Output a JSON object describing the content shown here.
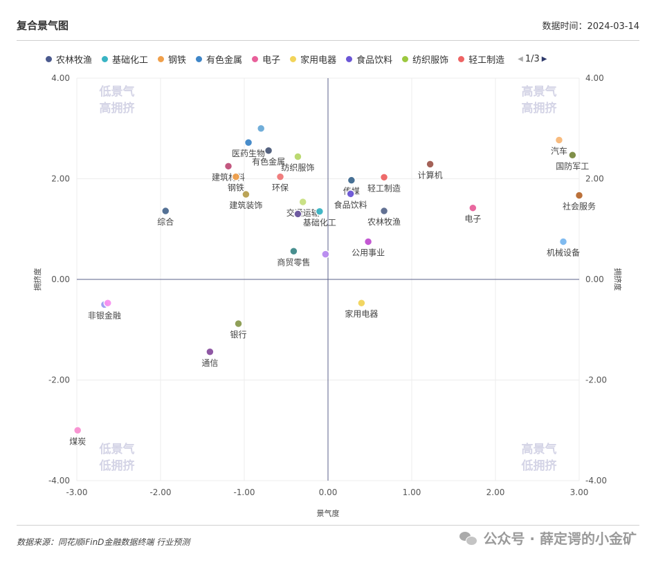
{
  "header": {
    "title": "复合景气图",
    "data_time": "数据时间：2024-03-14"
  },
  "legend": {
    "items": [
      {
        "label": "农林牧渔",
        "color": "#4b5a8e"
      },
      {
        "label": "基础化工",
        "color": "#39b4c4"
      },
      {
        "label": "钢铁",
        "color": "#f0a04b"
      },
      {
        "label": "有色金属",
        "color": "#3f86c8"
      },
      {
        "label": "电子",
        "color": "#e8609a"
      },
      {
        "label": "家用电器",
        "color": "#f2d45a"
      },
      {
        "label": "食品饮料",
        "color": "#6b56d6"
      },
      {
        "label": "纺织服饰",
        "color": "#9cc83f"
      },
      {
        "label": "轻工制造",
        "color": "#ee6464"
      }
    ],
    "page": "1/3",
    "prev_icon": "triangle-left-icon",
    "next_icon": "triangle-right-icon"
  },
  "footer": {
    "source": "数据来源：同花顺iFinD金融数据终端 行业预测",
    "watermark": "公众号 · 薛定谔的小金矿",
    "watermark_icon": "wechat-icon"
  },
  "chart_data": {
    "type": "scatter",
    "xlabel": "景气度",
    "ylabel": "拥挤度",
    "xlim": [
      -3,
      3
    ],
    "ylim": [
      -4,
      4
    ],
    "x_ticks": [
      "-3.00",
      "-2.00",
      "-1.00",
      "0.00",
      "1.00",
      "2.00",
      "3.00"
    ],
    "y_ticks": [
      "-4.00",
      "-2.00",
      "0.00",
      "2.00",
      "4.00"
    ],
    "grid": true,
    "quadrant_labels": {
      "top_left": [
        "低景气",
        "高拥挤"
      ],
      "top_right": [
        "高景气",
        "高拥挤"
      ],
      "bottom_left": [
        "低景气",
        "低拥挤"
      ],
      "bottom_right": [
        "高景气",
        "低拥挤"
      ]
    },
    "points": [
      {
        "label": "医药生物",
        "x": -0.95,
        "y": 2.72,
        "color": "#3f86c8"
      },
      {
        "label": "",
        "x": -0.8,
        "y": 3.0,
        "color": "#6aaad8"
      },
      {
        "label": "有色金属",
        "x": -0.71,
        "y": 2.56,
        "color": "#4b5a7a"
      },
      {
        "label": "纺织服饰",
        "x": -0.36,
        "y": 2.44,
        "color": "#b8d86a"
      },
      {
        "label": "建筑材料",
        "x": -1.19,
        "y": 2.25,
        "color": "#c0507a"
      },
      {
        "label": "钢铁",
        "x": -1.1,
        "y": 2.04,
        "color": "#f0a04b"
      },
      {
        "label": "建筑装饰",
        "x": -0.98,
        "y": 1.69,
        "color": "#b8a050"
      },
      {
        "label": "环保",
        "x": -0.57,
        "y": 2.04,
        "color": "#f07878"
      },
      {
        "label": "综合",
        "x": -1.94,
        "y": 1.36,
        "color": "#4b6a90"
      },
      {
        "label": "交通运输",
        "x": -0.3,
        "y": 1.54,
        "color": "#c8e080"
      },
      {
        "label": "",
        "x": -0.36,
        "y": 1.3,
        "color": "#6b56a0"
      },
      {
        "label": "基础化工",
        "x": -0.1,
        "y": 1.35,
        "color": "#39b4c4"
      },
      {
        "label": "传媒",
        "x": 0.28,
        "y": 1.97,
        "color": "#3f6a90"
      },
      {
        "label": "食品饮料",
        "x": 0.27,
        "y": 1.7,
        "color": "#6b56d6"
      },
      {
        "label": "轻工制造",
        "x": 0.67,
        "y": 2.03,
        "color": "#ee6464"
      },
      {
        "label": "农林牧渔",
        "x": 0.67,
        "y": 1.36,
        "color": "#5a6a8e"
      },
      {
        "label": "计算机",
        "x": 1.22,
        "y": 2.29,
        "color": "#a05a50"
      },
      {
        "label": "电子",
        "x": 1.73,
        "y": 1.42,
        "color": "#e8609a"
      },
      {
        "label": "汽车",
        "x": 2.76,
        "y": 2.77,
        "color": "#f8b878"
      },
      {
        "label": "国防军工",
        "x": 2.92,
        "y": 2.47,
        "color": "#7a8a40"
      },
      {
        "label": "社会服务",
        "x": 3.0,
        "y": 1.67,
        "color": "#b86a30"
      },
      {
        "label": "机械设备",
        "x": 2.81,
        "y": 0.75,
        "color": "#7ab8f0"
      },
      {
        "label": "商贸零售",
        "x": -0.41,
        "y": 0.56,
        "color": "#3f8a8a"
      },
      {
        "label": "",
        "x": -0.03,
        "y": 0.5,
        "color": "#b88af0"
      },
      {
        "label": "公用事业",
        "x": 0.48,
        "y": 0.75,
        "color": "#c050d0"
      },
      {
        "label": "家用电器",
        "x": 0.4,
        "y": -0.47,
        "color": "#f2d45a"
      },
      {
        "label": "非银金融",
        "x": -2.67,
        "y": -0.5,
        "color": "#9a9af0"
      },
      {
        "label": "",
        "x": -2.63,
        "y": -0.47,
        "color": "#f890f0"
      },
      {
        "label": "银行",
        "x": -1.07,
        "y": -0.88,
        "color": "#8a9a50"
      },
      {
        "label": "通信",
        "x": -1.41,
        "y": -1.44,
        "color": "#8a50a0"
      },
      {
        "label": "煤炭",
        "x": -2.99,
        "y": -3.0,
        "color": "#f890d0"
      }
    ]
  }
}
